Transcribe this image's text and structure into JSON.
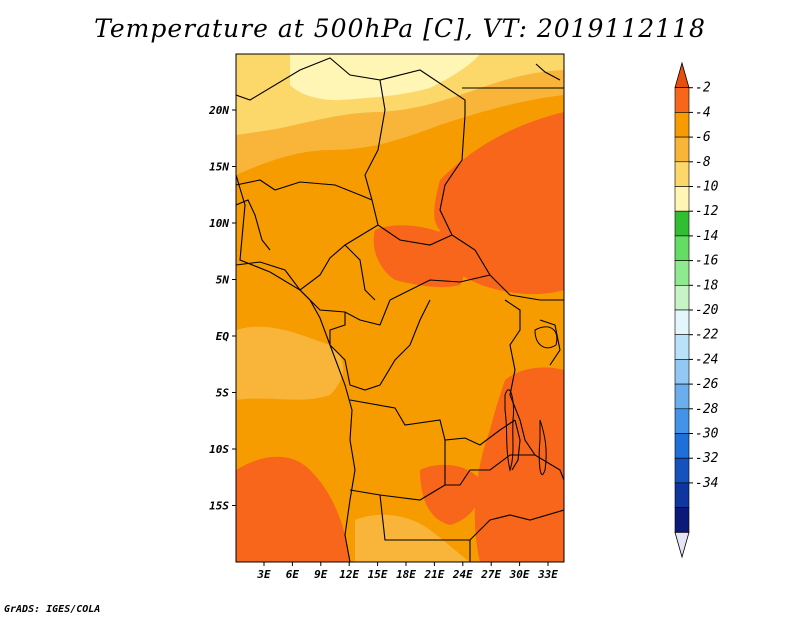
{
  "title": "Temperature at 500hPa [C], VT: 2019112118",
  "credit": "GrADS: IGES/COLA",
  "lat_ticks": [
    "20N",
    "15N",
    "10N",
    "5N",
    "EQ",
    "5S",
    "10S",
    "15S"
  ],
  "lon_ticks": [
    "3E",
    "6E",
    "9E",
    "12E",
    "15E",
    "18E",
    "21E",
    "24E",
    "27E",
    "30E",
    "33E"
  ],
  "colorbar": {
    "labels": [
      "-2",
      "-4",
      "-6",
      "-8",
      "-10",
      "-12",
      "-14",
      "-16",
      "-18",
      "-20",
      "-22",
      "-24",
      "-26",
      "-28",
      "-30",
      "-32",
      "-34"
    ],
    "colors": [
      "#e84e0c",
      "#f7661b",
      "#f79c00",
      "#f8b53a",
      "#fcd769",
      "#fff5b4",
      "#32be32",
      "#63dd63",
      "#8fe98f",
      "#c7f4c7",
      "#e2f6fb",
      "#b9e1f8",
      "#93c8f5",
      "#6aaeee",
      "#4394e8",
      "#1e6fd9",
      "#1552bd",
      "#0e35a0",
      "#0b1a78",
      "#e5e5f7"
    ]
  },
  "colors": {
    "warmest": "#f7661b",
    "warm": "#f79c00",
    "mild": "#f8b53a",
    "cool": "#fcd769",
    "coolest": "#fff5b4"
  }
}
